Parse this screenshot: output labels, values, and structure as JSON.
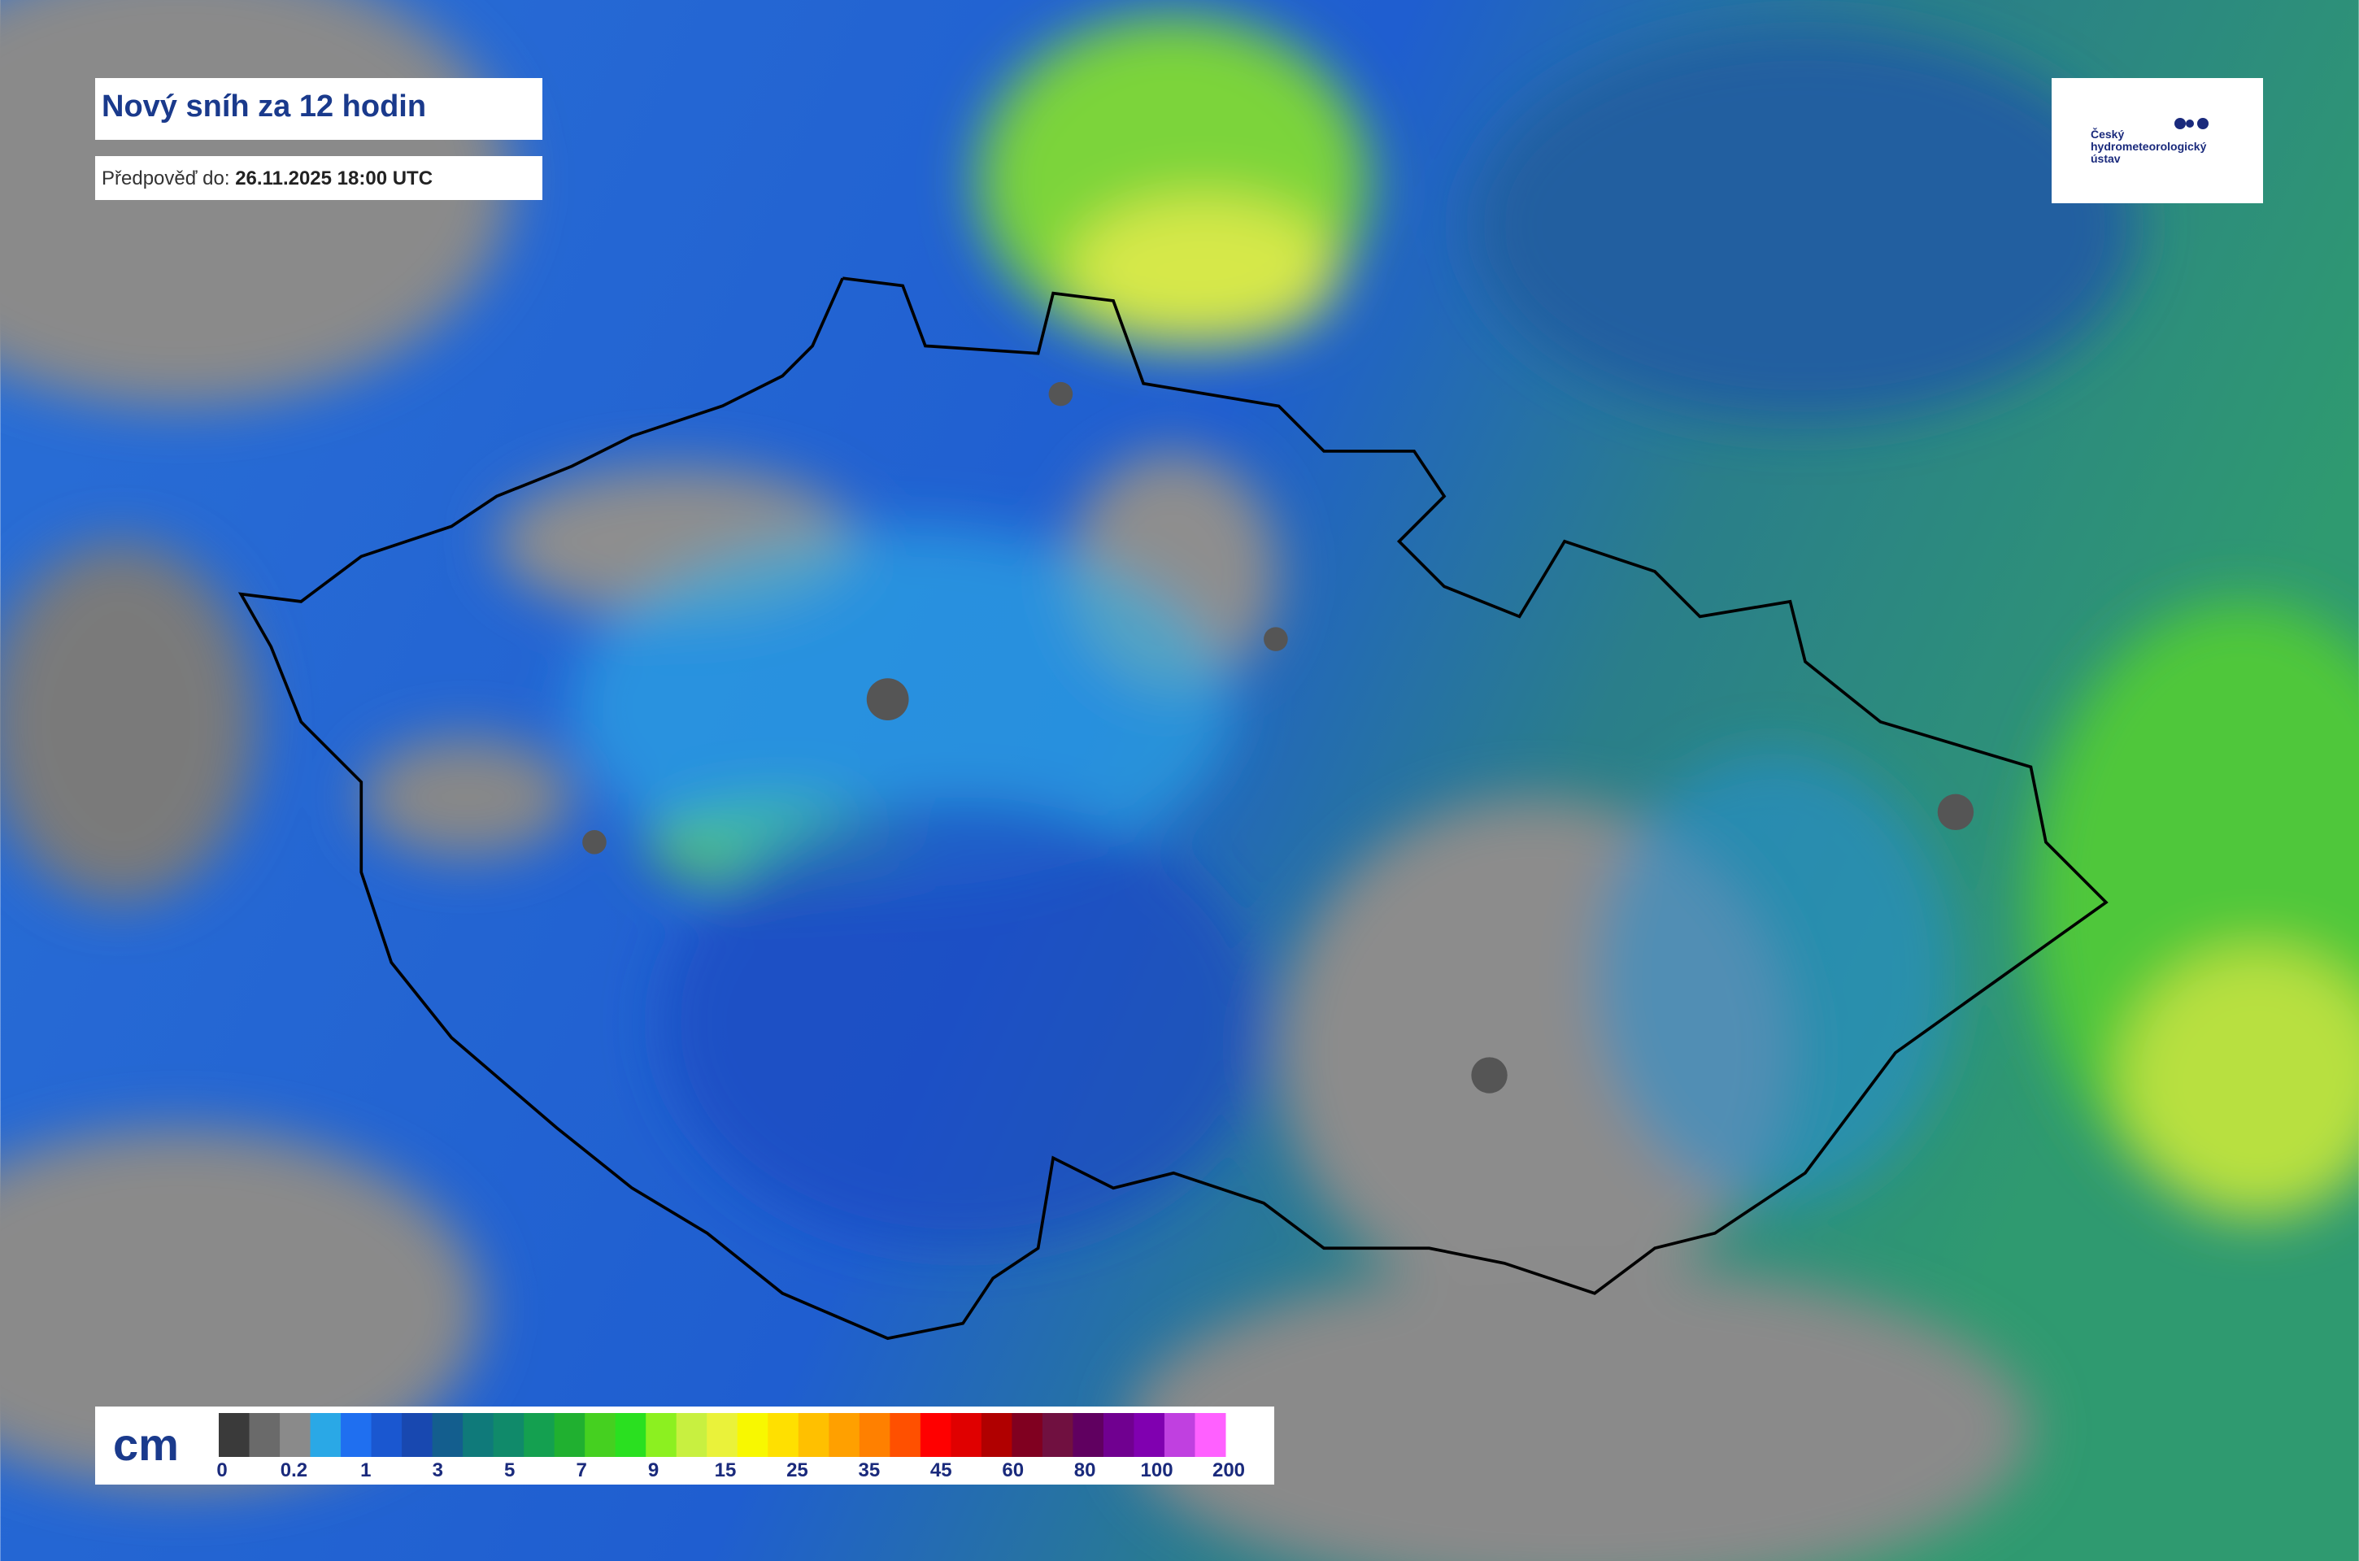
{
  "header": {
    "title": "Nový sníh za 12 hodin",
    "forecast_label": "Předpověď do:",
    "forecast_time": "26.11.2025 18:00 UTC"
  },
  "logo": {
    "lines": [
      "Český",
      "hydrometeorologický",
      "ústav"
    ]
  },
  "legend": {
    "unit": "cm",
    "labels": [
      "0",
      "0.2",
      "1",
      "3",
      "5",
      "7",
      "9",
      "15",
      "25",
      "35",
      "45",
      "60",
      "80",
      "100",
      "200"
    ],
    "colors": [
      "#3a3a3a",
      "#6a6a6a",
      "#8a8a8a",
      "#2aa8e6",
      "#1f6ff0",
      "#1a57d0",
      "#1848b0",
      "#135e8e",
      "#0f7a7a",
      "#108a6a",
      "#14a050",
      "#20b030",
      "#45d020",
      "#2ae020",
      "#8cf020",
      "#c8f040",
      "#eaf23a",
      "#f8f800",
      "#ffe000",
      "#ffc000",
      "#ffa000",
      "#ff8000",
      "#ff5000",
      "#ff0000",
      "#e00000",
      "#b00000",
      "#800020",
      "#701040",
      "#600060",
      "#700090",
      "#8000b0",
      "#c040e0",
      "#ff60ff"
    ]
  }
}
